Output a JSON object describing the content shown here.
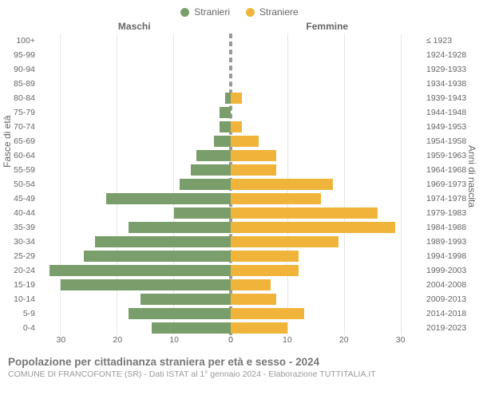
{
  "legend": {
    "male": {
      "label": "Stranieri",
      "color": "#7a9e6b"
    },
    "female": {
      "label": "Straniere",
      "color": "#f1b43a"
    }
  },
  "column_titles": {
    "left": "Maschi",
    "right": "Femmine"
  },
  "y_axis_left_title": "Fasce di età",
  "y_axis_right_title": "Anni di nascita",
  "footer_title": "Popolazione per cittadinanza straniera per età e sesso - 2024",
  "footer_sub": "COMUNE DI FRANCOFONTE (SR) - Dati ISTAT al 1° gennaio 2024 - Elaborazione TUTTITALIA.IT",
  "chart": {
    "type": "population-pyramid",
    "x_max": 34,
    "x_ticks_left": [
      30,
      20,
      10,
      0
    ],
    "x_ticks_right": [
      0,
      10,
      20,
      30
    ],
    "grid_color": "#e6e6e6",
    "background_color": "#ffffff",
    "axis_color": "#999999",
    "label_color": "#666666",
    "label_fontsize": 10.5,
    "title_fontsize": 13.5,
    "bar_height_pct": 80,
    "rows": [
      {
        "age": "100+",
        "birth": "≤ 1923",
        "m": 0,
        "f": 0
      },
      {
        "age": "95-99",
        "birth": "1924-1928",
        "m": 0,
        "f": 0
      },
      {
        "age": "90-94",
        "birth": "1929-1933",
        "m": 0,
        "f": 0
      },
      {
        "age": "85-89",
        "birth": "1934-1938",
        "m": 0,
        "f": 0
      },
      {
        "age": "80-84",
        "birth": "1939-1943",
        "m": 1,
        "f": 2
      },
      {
        "age": "75-79",
        "birth": "1944-1948",
        "m": 2,
        "f": 0
      },
      {
        "age": "70-74",
        "birth": "1949-1953",
        "m": 2,
        "f": 2
      },
      {
        "age": "65-69",
        "birth": "1954-1958",
        "m": 3,
        "f": 5
      },
      {
        "age": "60-64",
        "birth": "1959-1963",
        "m": 6,
        "f": 8
      },
      {
        "age": "55-59",
        "birth": "1964-1968",
        "m": 7,
        "f": 8
      },
      {
        "age": "50-54",
        "birth": "1969-1973",
        "m": 9,
        "f": 18
      },
      {
        "age": "45-49",
        "birth": "1974-1978",
        "m": 22,
        "f": 16
      },
      {
        "age": "40-44",
        "birth": "1979-1983",
        "m": 10,
        "f": 26
      },
      {
        "age": "35-39",
        "birth": "1984-1988",
        "m": 18,
        "f": 29
      },
      {
        "age": "30-34",
        "birth": "1989-1993",
        "m": 24,
        "f": 19
      },
      {
        "age": "25-29",
        "birth": "1994-1998",
        "m": 26,
        "f": 12
      },
      {
        "age": "20-24",
        "birth": "1999-2003",
        "m": 32,
        "f": 12
      },
      {
        "age": "15-19",
        "birth": "2004-2008",
        "m": 30,
        "f": 7
      },
      {
        "age": "10-14",
        "birth": "2009-2013",
        "m": 16,
        "f": 8
      },
      {
        "age": "5-9",
        "birth": "2014-2018",
        "m": 18,
        "f": 13
      },
      {
        "age": "0-4",
        "birth": "2019-2023",
        "m": 14,
        "f": 10
      }
    ]
  }
}
